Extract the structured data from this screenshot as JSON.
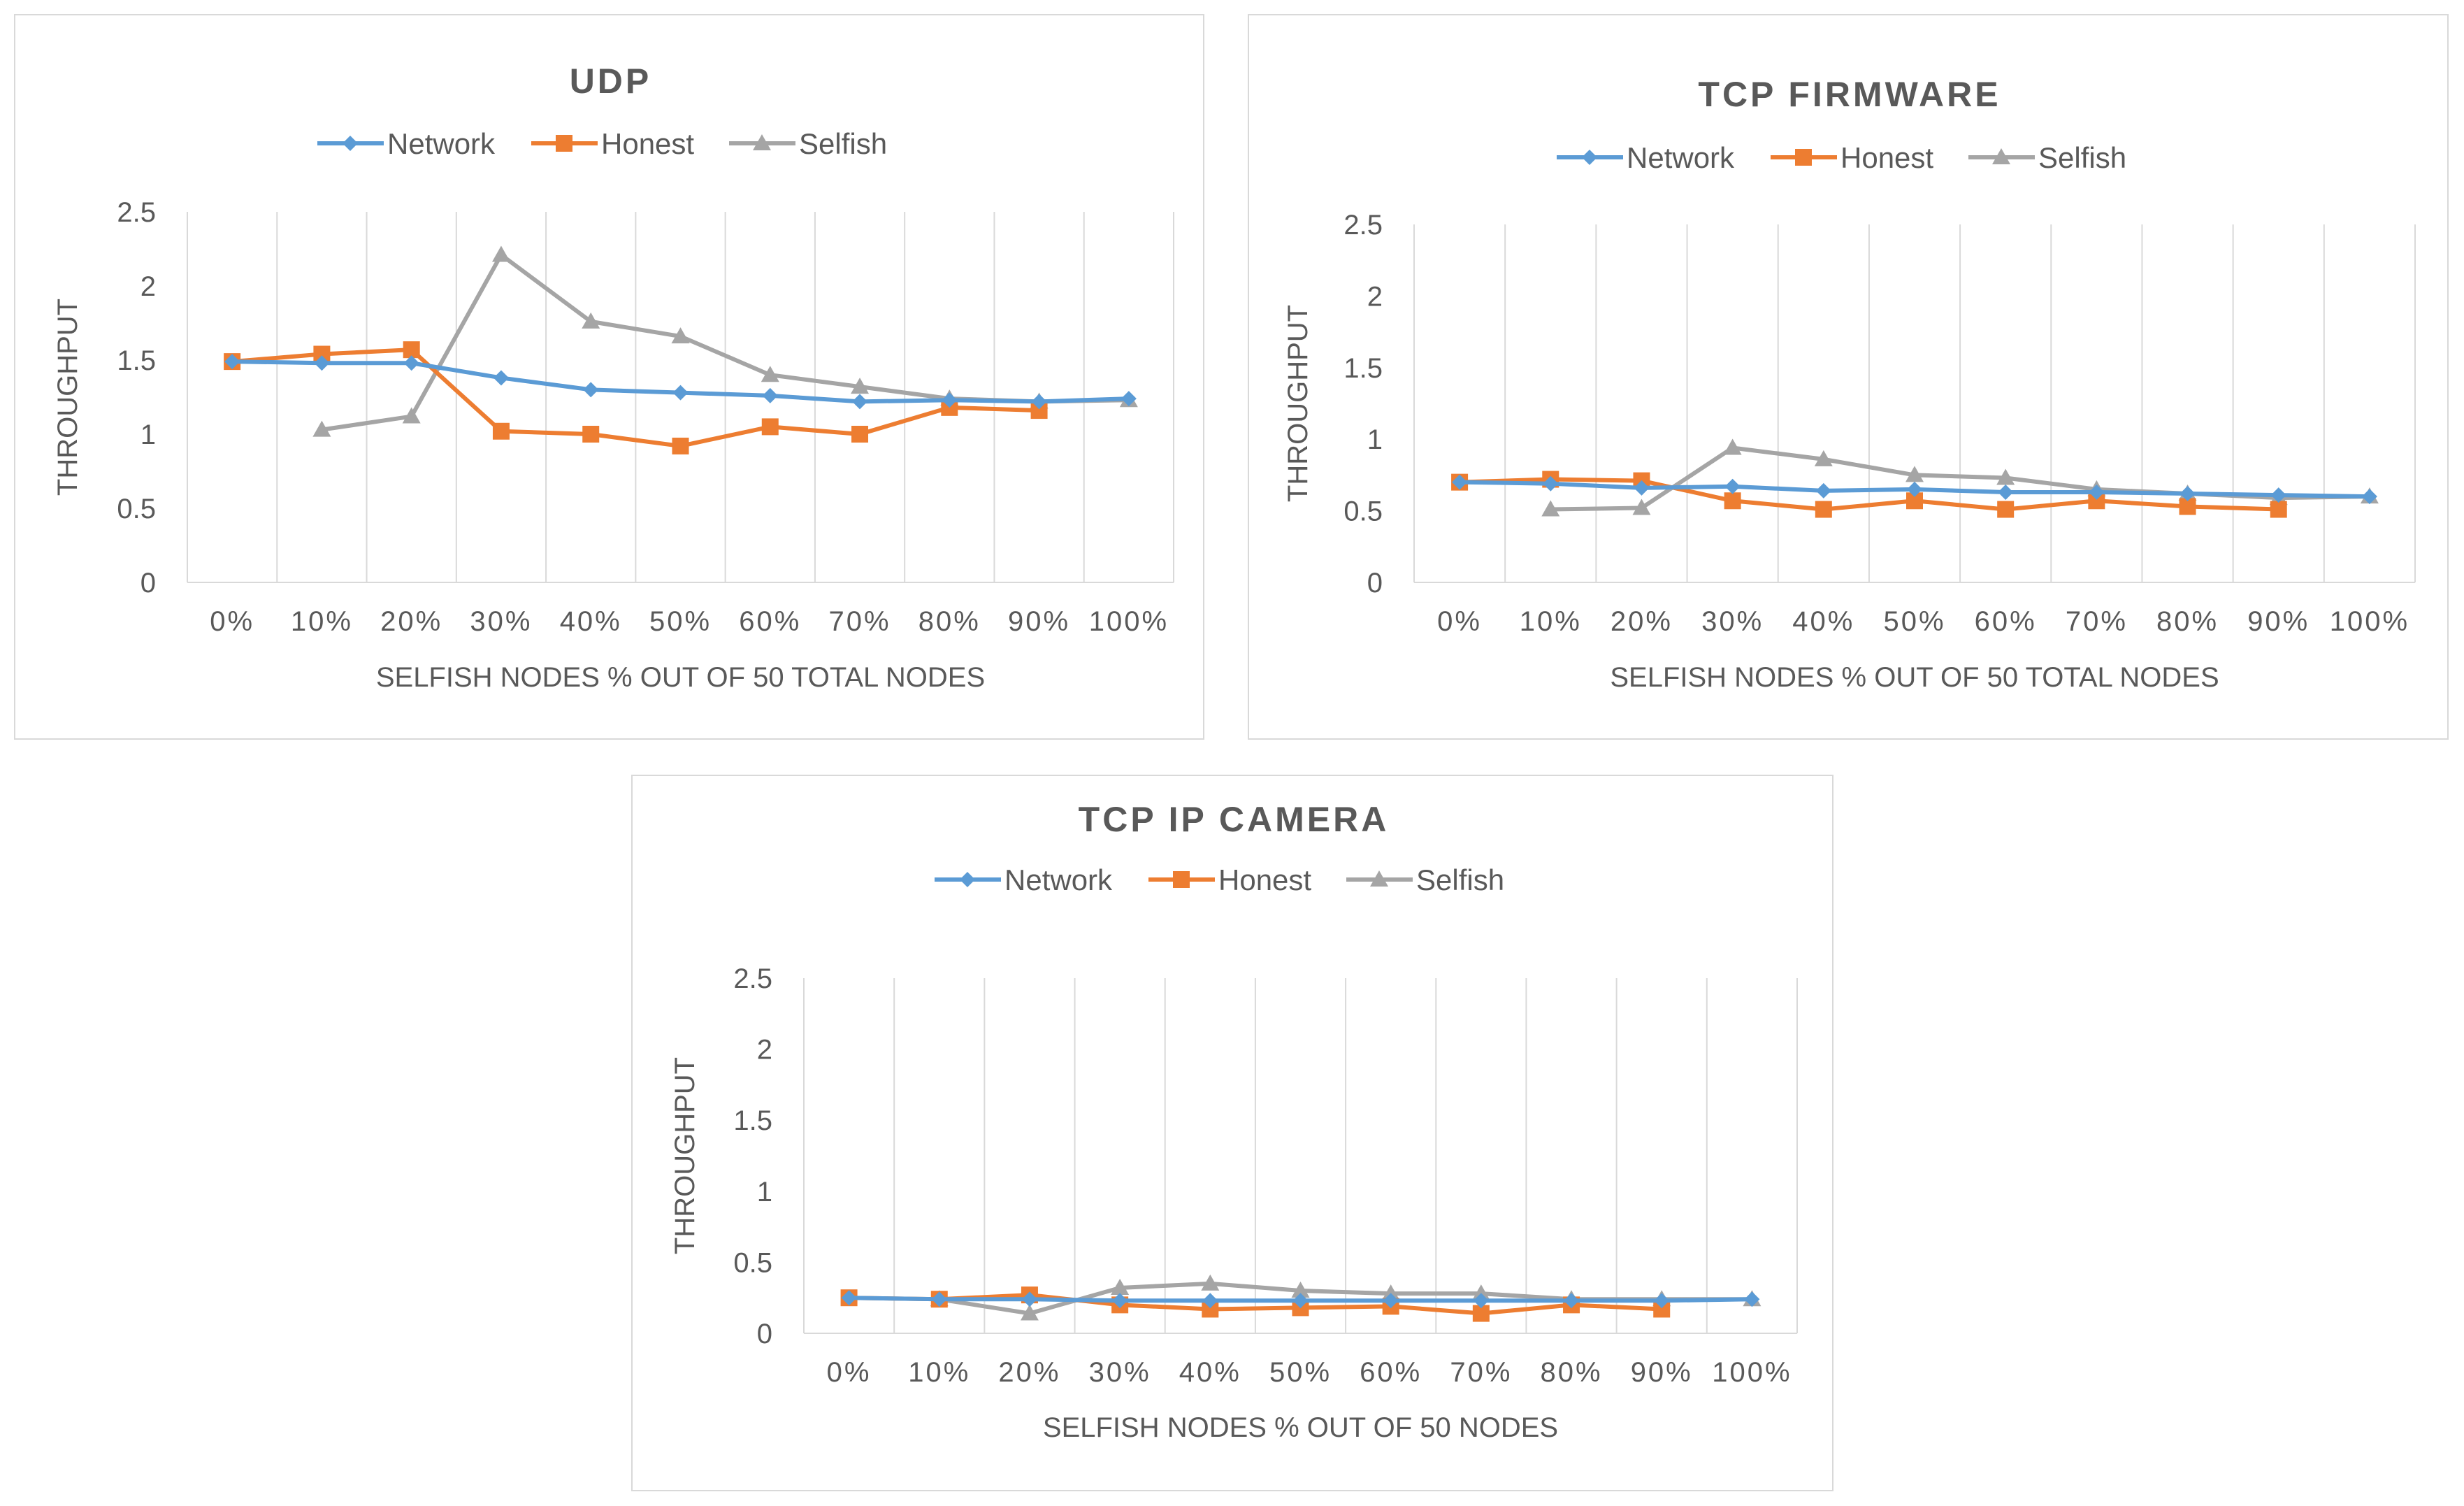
{
  "colors": {
    "network": "#5b9bd5",
    "honest": "#ed7d31",
    "selfish": "#a5a5a5",
    "grid": "#d9d9d9",
    "text": "#595959"
  },
  "chart_data": [
    {
      "type": "line",
      "title": "UDP",
      "xlabel": "SELFISH NODES % OUT OF 50 TOTAL NODES",
      "ylabel": "THROUGHPUT",
      "categories": [
        "0%",
        "10%",
        "20%",
        "30%",
        "40%",
        "50%",
        "60%",
        "70%",
        "80%",
        "90%",
        "100%"
      ],
      "ylim": [
        0,
        2.5
      ],
      "yticks": [
        "0",
        "0.5",
        "1",
        "1.5",
        "2",
        "2.5"
      ],
      "grid": "vertical",
      "legend": "top",
      "series": [
        {
          "name": "Network",
          "marker": "diamond",
          "values": [
            1.49,
            1.48,
            1.48,
            1.38,
            1.3,
            1.28,
            1.26,
            1.22,
            1.23,
            1.22,
            1.24
          ]
        },
        {
          "name": "Honest",
          "marker": "square",
          "values": [
            1.49,
            1.54,
            1.57,
            1.02,
            1.0,
            0.92,
            1.05,
            1.0,
            1.18,
            1.16,
            null
          ]
        },
        {
          "name": "Selfish",
          "marker": "triangle",
          "values": [
            null,
            1.03,
            1.12,
            2.21,
            1.76,
            1.66,
            1.4,
            1.32,
            1.24,
            1.22,
            1.23
          ]
        }
      ]
    },
    {
      "type": "line",
      "title": "TCP FIRMWARE",
      "xlabel": "SELFISH NODES % OUT OF 50 TOTAL NODES",
      "ylabel": "THROUGHPUT",
      "categories": [
        "0%",
        "10%",
        "20%",
        "30%",
        "40%",
        "50%",
        "60%",
        "70%",
        "80%",
        "90%",
        "100%"
      ],
      "ylim": [
        0,
        2.5
      ],
      "yticks": [
        "0",
        "0.5",
        "1",
        "1.5",
        "2",
        "2.5"
      ],
      "grid": "vertical",
      "legend": "top",
      "series": [
        {
          "name": "Network",
          "marker": "diamond",
          "values": [
            0.7,
            0.69,
            0.66,
            0.67,
            0.64,
            0.65,
            0.63,
            0.63,
            0.62,
            0.61,
            0.6
          ]
        },
        {
          "name": "Honest",
          "marker": "square",
          "values": [
            0.7,
            0.72,
            0.71,
            0.57,
            0.51,
            0.57,
            0.51,
            0.57,
            0.53,
            0.51,
            null
          ]
        },
        {
          "name": "Selfish",
          "marker": "triangle",
          "values": [
            null,
            0.51,
            0.52,
            0.94,
            0.86,
            0.75,
            0.73,
            0.65,
            0.62,
            0.59,
            0.6
          ]
        }
      ]
    },
    {
      "type": "line",
      "title": "TCP IP CAMERA",
      "xlabel": "SELFISH NODES % OUT OF 50 NODES",
      "ylabel": "THROUGHPUT",
      "categories": [
        "0%",
        "10%",
        "20%",
        "30%",
        "40%",
        "50%",
        "60%",
        "70%",
        "80%",
        "90%",
        "100%"
      ],
      "ylim": [
        0,
        2.5
      ],
      "yticks": [
        "0",
        "0.5",
        "1",
        "1.5",
        "2",
        "2.5"
      ],
      "grid": "vertical",
      "legend": "top",
      "series": [
        {
          "name": "Network",
          "marker": "diamond",
          "values": [
            0.25,
            0.24,
            0.24,
            0.23,
            0.23,
            0.23,
            0.23,
            0.23,
            0.23,
            0.23,
            0.24
          ]
        },
        {
          "name": "Honest",
          "marker": "square",
          "values": [
            0.25,
            0.24,
            0.27,
            0.2,
            0.17,
            0.18,
            0.19,
            0.14,
            0.2,
            0.17,
            null
          ]
        },
        {
          "name": "Selfish",
          "marker": "triangle",
          "values": [
            null,
            0.24,
            0.14,
            0.32,
            0.35,
            0.3,
            0.28,
            0.28,
            0.24,
            0.24,
            0.24
          ]
        }
      ]
    }
  ]
}
